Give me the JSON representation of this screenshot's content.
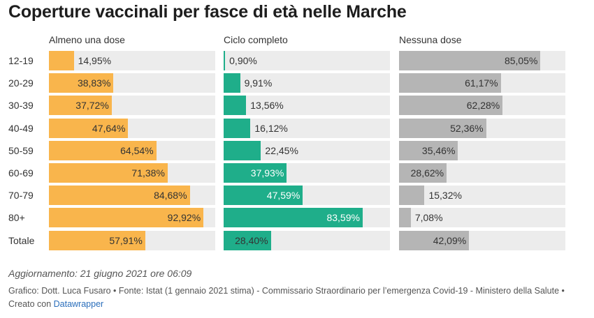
{
  "title": "Coperture vaccinali per fasce di età nelle Marche",
  "colors": {
    "almeno_una_dose": "#f9b54c",
    "ciclo_completo": "#1fae8a",
    "nessuna_dose": "#b5b5b5",
    "track": "#ececec",
    "link": "#2a6ebb"
  },
  "chart_data": {
    "type": "bar",
    "orientation": "horizontal",
    "unit": "%",
    "xlim": [
      0,
      100
    ],
    "categories": [
      "12-19",
      "20-29",
      "30-39",
      "40-49",
      "50-59",
      "60-69",
      "70-79",
      "80+",
      "Totale"
    ],
    "series": [
      {
        "name": "Almeno una dose",
        "values": [
          14.95,
          38.83,
          37.72,
          47.64,
          64.54,
          71.38,
          84.68,
          92.92,
          57.91
        ],
        "labels": [
          "14,95%",
          "38,83%",
          "37,72%",
          "47,64%",
          "64,54%",
          "71,38%",
          "84,68%",
          "92,92%",
          "57,91%"
        ]
      },
      {
        "name": "Ciclo completo",
        "values": [
          0.9,
          9.91,
          13.56,
          16.12,
          22.45,
          37.93,
          47.59,
          83.59,
          28.4
        ],
        "labels": [
          "0,90%",
          "9,91%",
          "13,56%",
          "16,12%",
          "22,45%",
          "37,93%",
          "47,59%",
          "83,59%",
          "28,40%"
        ]
      },
      {
        "name": "Nessuna dose",
        "values": [
          85.05,
          61.17,
          62.28,
          52.36,
          35.46,
          28.62,
          15.32,
          7.08,
          42.09
        ],
        "labels": [
          "85,05%",
          "61,17%",
          "62,28%",
          "52,36%",
          "35,46%",
          "28,62%",
          "15,32%",
          "7,08%",
          "42,09%"
        ]
      }
    ]
  },
  "update": "Aggiornamento: 21 giugno 2021 ore 06:09",
  "credits_text": "Grafico: Dott. Luca Fusaro • Fonte: Istat (1 gennaio 2021 stima) - Commissario Straordinario per l’emergenza Covid-19 - Ministero della Salute • Creato con ",
  "credits_link": "Datawrapper"
}
